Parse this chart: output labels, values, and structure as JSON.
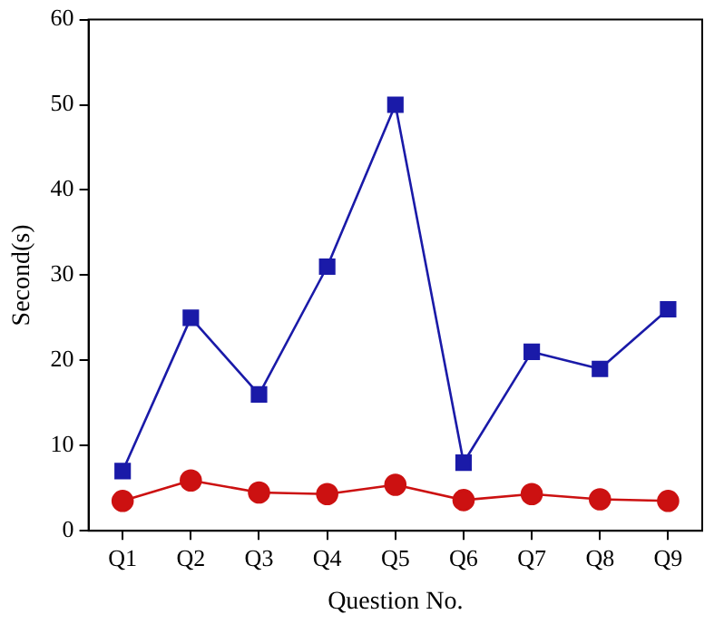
{
  "chart_data": {
    "type": "line",
    "xlabel": "Question No.",
    "ylabel": "Second(s)",
    "categories": [
      "Q1",
      "Q2",
      "Q3",
      "Q4",
      "Q5",
      "Q6",
      "Q7",
      "Q8",
      "Q9"
    ],
    "series": [
      {
        "color": "#1a1aa8",
        "marker": "square",
        "values": [
          7,
          25,
          16,
          31,
          50,
          8,
          21,
          19,
          26
        ]
      },
      {
        "color": "#cc1111",
        "marker": "circle",
        "values": [
          3.5,
          5.9,
          4.5,
          4.3,
          5.4,
          3.6,
          4.3,
          3.7,
          3.5
        ]
      }
    ],
    "ylim": [
      0,
      60
    ],
    "yticks": [
      0,
      10,
      20,
      30,
      40,
      50,
      60
    ],
    "grid": false,
    "legend": false,
    "line_style": "solid"
  }
}
